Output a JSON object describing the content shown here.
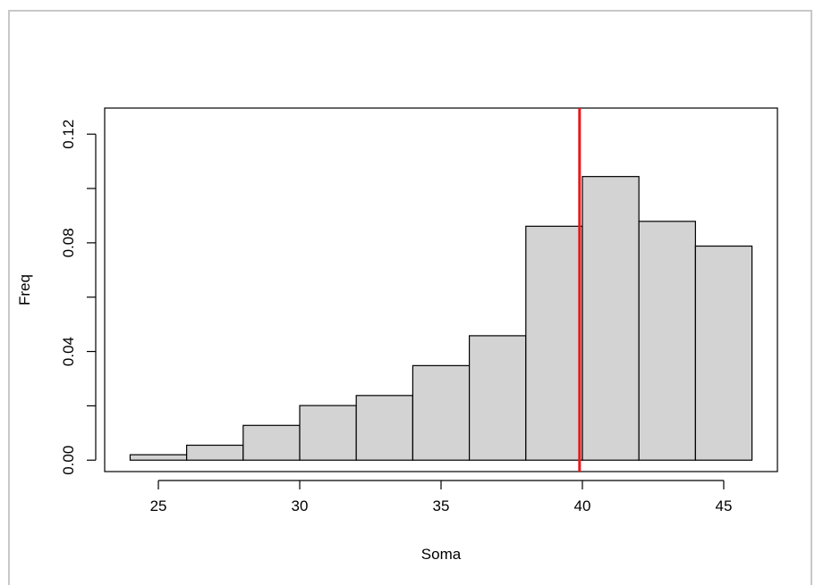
{
  "chart_data": {
    "type": "bar",
    "title": "",
    "xlabel": "Soma",
    "ylabel": "Freq",
    "bins": [
      {
        "x0": 24,
        "x1": 26,
        "value": 0.002
      },
      {
        "x0": 26,
        "x1": 28,
        "value": 0.0055
      },
      {
        "x0": 28,
        "x1": 30,
        "value": 0.0128
      },
      {
        "x0": 30,
        "x1": 32,
        "value": 0.0201
      },
      {
        "x0": 32,
        "x1": 34,
        "value": 0.0238
      },
      {
        "x0": 34,
        "x1": 36,
        "value": 0.0348
      },
      {
        "x0": 36,
        "x1": 38,
        "value": 0.0458
      },
      {
        "x0": 38,
        "x1": 40,
        "value": 0.0861
      },
      {
        "x0": 40,
        "x1": 42,
        "value": 0.1044
      },
      {
        "x0": 42,
        "x1": 44,
        "value": 0.0879
      },
      {
        "x0": 44,
        "x1": 46,
        "value": 0.0788
      }
    ],
    "xlim": [
      23.1,
      46.9
    ],
    "ylim": [
      -0.0042,
      0.1296
    ],
    "xticks": [
      25,
      30,
      35,
      40,
      45
    ],
    "yticks": [
      0.0,
      0.02,
      0.04,
      0.06,
      0.08,
      0.1,
      0.12
    ],
    "ytick_labels": [
      {
        "value": 0.0,
        "label": "0.00"
      },
      {
        "value": 0.04,
        "label": "0.04"
      },
      {
        "value": 0.08,
        "label": "0.08"
      },
      {
        "value": 0.12,
        "label": "0.12"
      }
    ],
    "vline": {
      "x": 39.9,
      "color": "#e8191c"
    },
    "bar_fill": "#d3d3d3",
    "bar_stroke": "#000000",
    "grid": false,
    "legend": "none"
  }
}
